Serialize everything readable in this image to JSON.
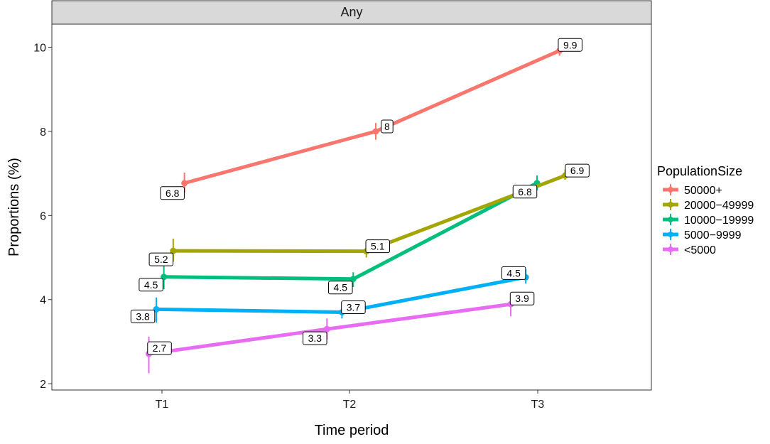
{
  "chart_data": {
    "type": "line",
    "facet_label": "Any",
    "xlabel": "Time period",
    "ylabel": "Proportions (%)",
    "categories": [
      "T1",
      "T2",
      "T3"
    ],
    "yticks": [
      2,
      4,
      6,
      8,
      10
    ],
    "ylim": [
      1.85,
      10.55
    ],
    "grid": false,
    "legend": {
      "title": "PopulationSize",
      "position": "right"
    },
    "series": [
      {
        "name": "50000+",
        "color": "#F8766D",
        "x": [
          1.12,
          2.14,
          3.12
        ],
        "values": [
          6.77,
          8.0,
          9.92
        ],
        "ci": [
          [
            6.55,
            7.02
          ],
          [
            7.8,
            8.2
          ],
          [
            9.8,
            10.05
          ]
        ],
        "labels": [
          "6.8",
          "8",
          "9.9"
        ]
      },
      {
        "name": "20000−49999",
        "color": "#A3A500",
        "x": [
          1.06,
          2.09,
          3.15
        ],
        "values": [
          5.16,
          5.15,
          6.95
        ],
        "ci": [
          [
            4.9,
            5.45
          ],
          [
            5.0,
            5.3
          ],
          [
            6.85,
            7.1
          ]
        ],
        "labels": [
          "5.2",
          "5.1",
          "6.9"
        ]
      },
      {
        "name": "10000−19999",
        "color": "#00BF7D",
        "x": [
          1.01,
          2.02,
          3.0
        ],
        "values": [
          4.54,
          4.49,
          6.77
        ],
        "ci": [
          [
            4.25,
            4.8
          ],
          [
            4.3,
            4.65
          ],
          [
            6.6,
            6.95
          ]
        ],
        "labels": [
          "4.5",
          "4.5",
          "6.8"
        ]
      },
      {
        "name": "5000−9999",
        "color": "#00B0F6",
        "x": [
          0.97,
          1.96,
          2.94
        ],
        "values": [
          3.77,
          3.7,
          4.53
        ],
        "ci": [
          [
            3.45,
            4.05
          ],
          [
            3.55,
            3.85
          ],
          [
            4.38,
            4.72
          ]
        ],
        "labels": [
          "3.8",
          "3.7",
          "4.5"
        ]
      },
      {
        "name": "<5000",
        "color": "#E76BF3",
        "x": [
          0.93,
          1.88,
          2.86
        ],
        "values": [
          2.71,
          3.3,
          3.89
        ],
        "ci": [
          [
            2.25,
            3.12
          ],
          [
            3.05,
            3.55
          ],
          [
            3.6,
            4.15
          ]
        ],
        "labels": [
          "2.7",
          "3.3",
          "3.9"
        ]
      }
    ]
  }
}
